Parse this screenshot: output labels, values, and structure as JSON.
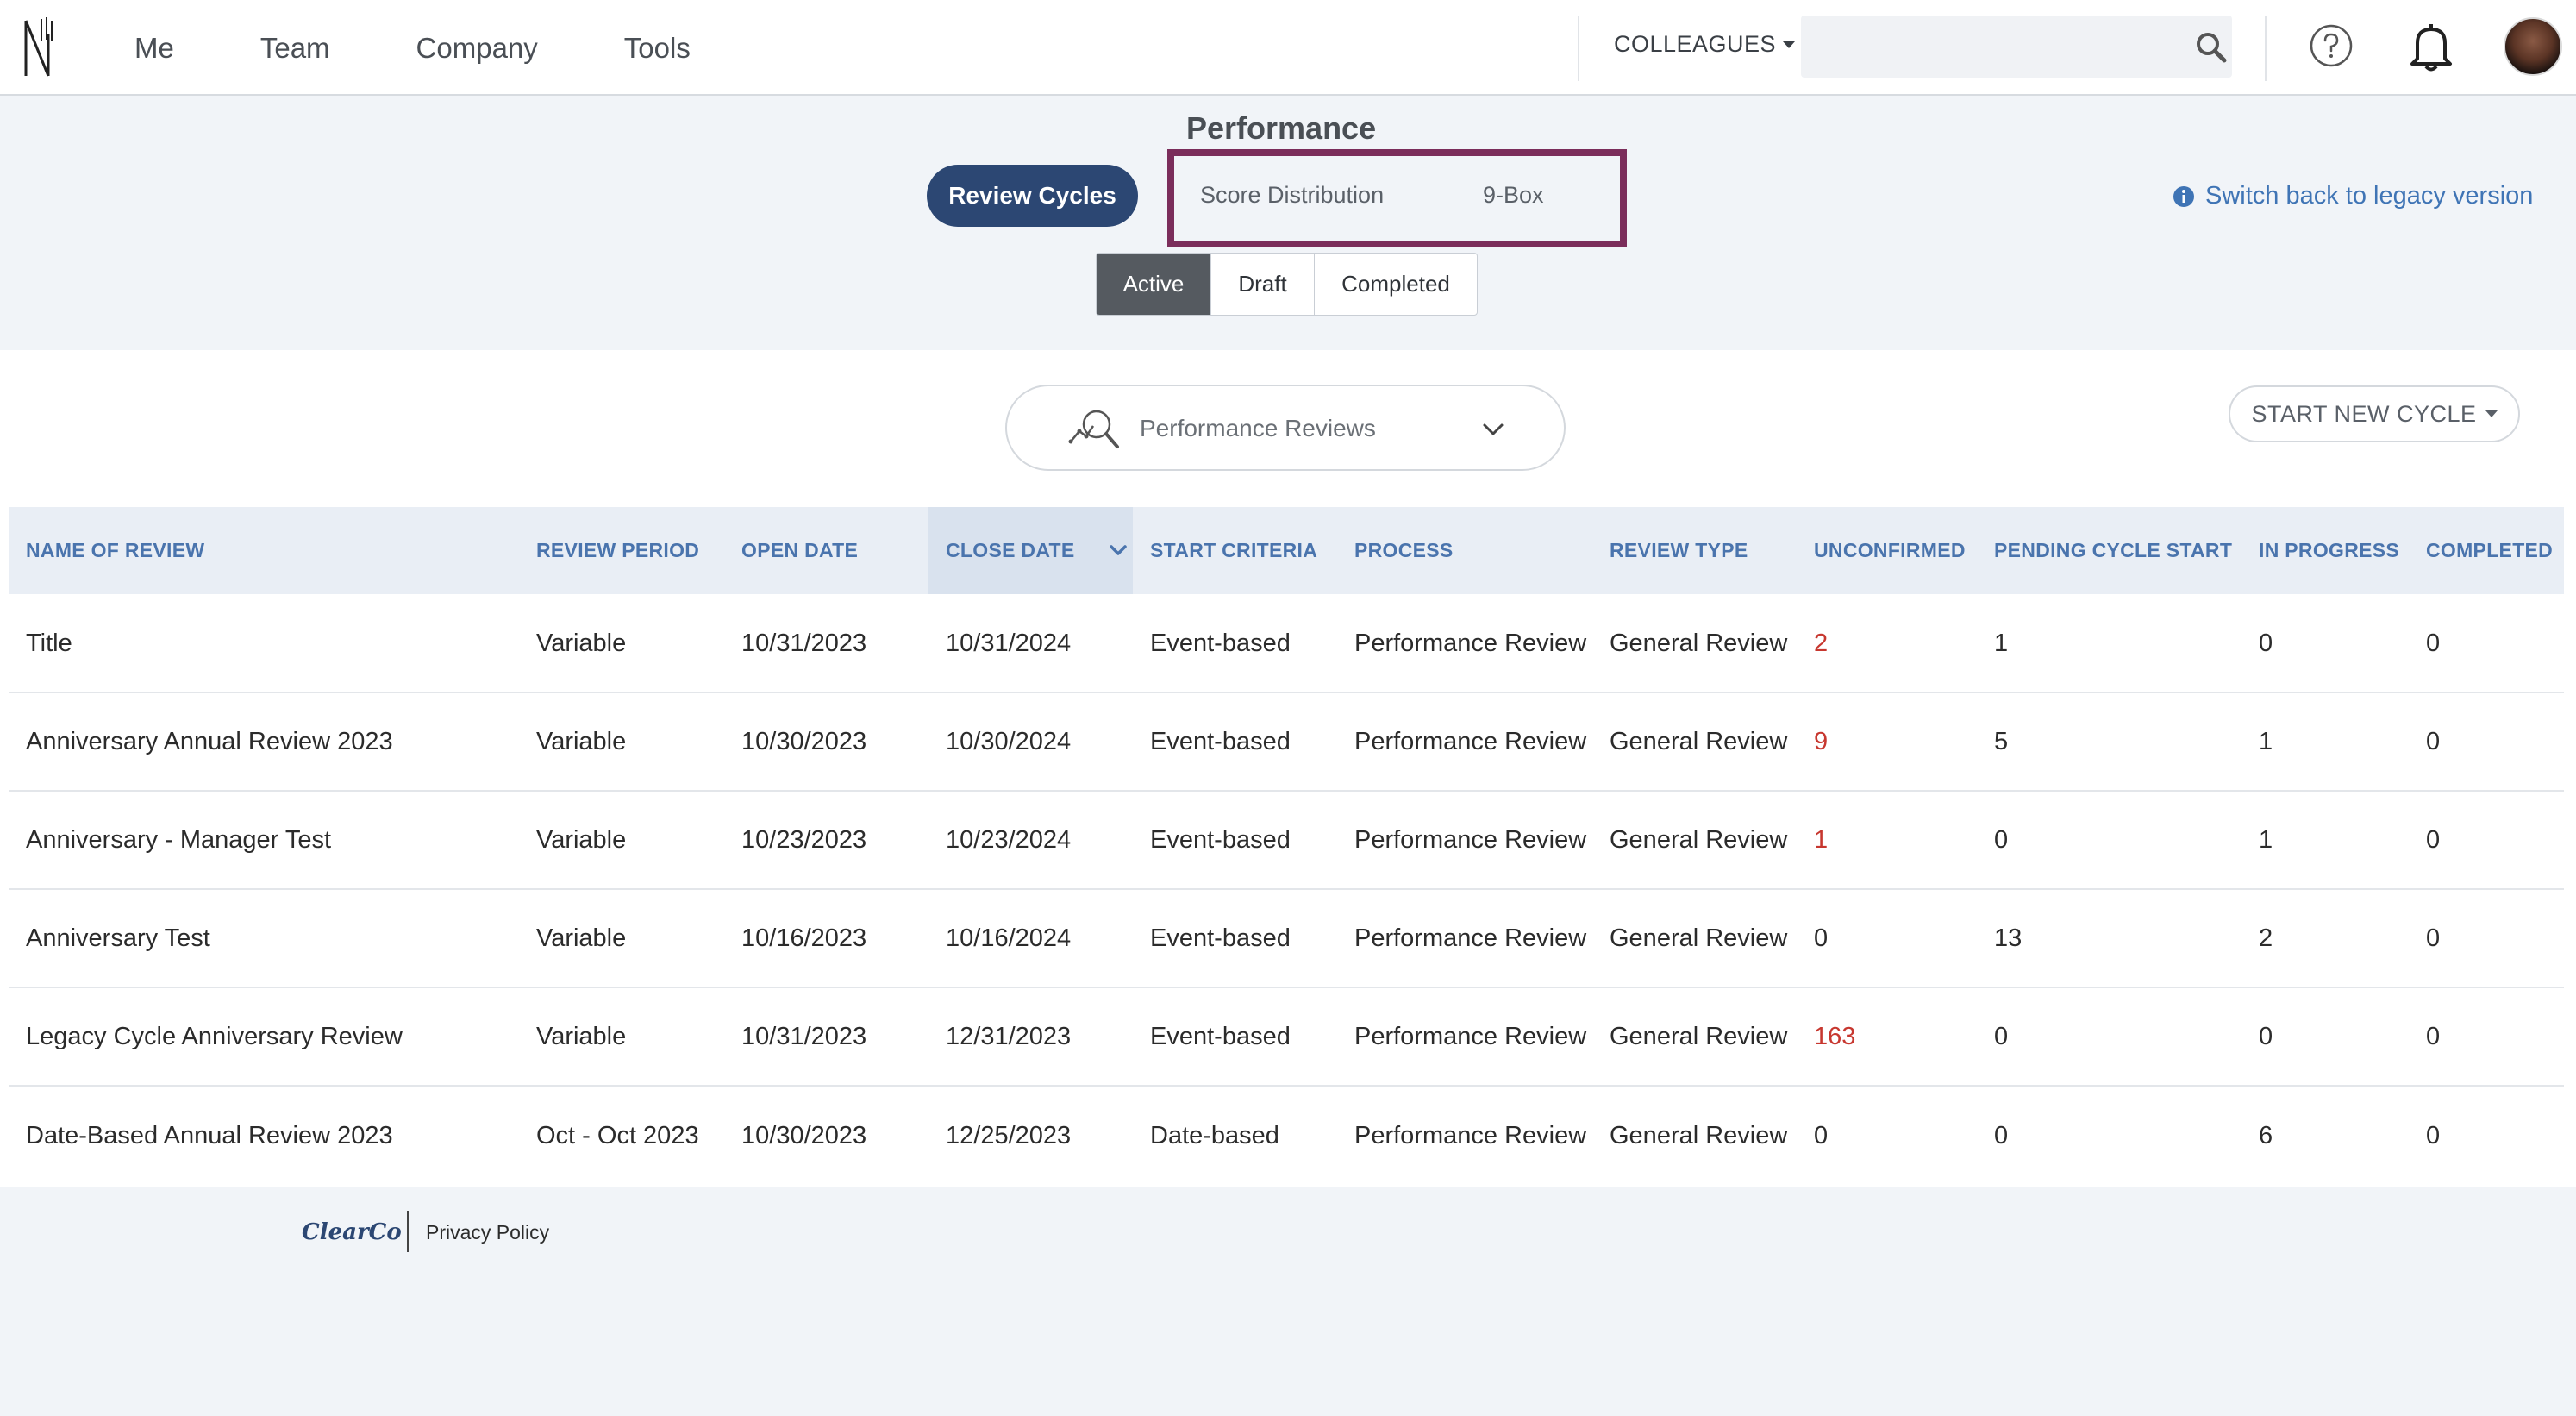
{
  "nav": {
    "links": [
      "Me",
      "Team",
      "Company",
      "Tools"
    ],
    "colleagues_label": "COLLEAGUES",
    "search_placeholder": "",
    "icons": [
      "logo-icon",
      "search-icon",
      "help-icon",
      "bell-icon",
      "avatar"
    ]
  },
  "header": {
    "title": "Performance",
    "review_cycles_button": "Review Cycles",
    "tabs": [
      "Score Distribution",
      "9-Box"
    ],
    "legacy_link": "Switch back to legacy version",
    "status_tabs": [
      "Active",
      "Draft",
      "Completed"
    ],
    "active_status": "Active"
  },
  "toolbar": {
    "review_type_dropdown": "Performance Reviews",
    "start_new_cycle": "START NEW CYCLE"
  },
  "table": {
    "columns": [
      "NAME OF REVIEW",
      "REVIEW PERIOD",
      "OPEN DATE",
      "CLOSE DATE",
      "START CRITERIA",
      "PROCESS",
      "REVIEW TYPE",
      "UNCONFIRMED",
      "PENDING CYCLE START",
      "IN PROGRESS",
      "COMPLETED"
    ],
    "sorted_column": "CLOSE DATE",
    "rows": [
      {
        "name": "Title",
        "period": "Variable",
        "open": "10/31/2023",
        "close": "10/31/2024",
        "criteria": "Event-based",
        "process": "Performance Review",
        "type": "General Review",
        "unconfirmed": "2",
        "pending": "1",
        "in_progress": "0",
        "completed": "0"
      },
      {
        "name": "Anniversary Annual Review 2023",
        "period": "Variable",
        "open": "10/30/2023",
        "close": "10/30/2024",
        "criteria": "Event-based",
        "process": "Performance Review",
        "type": "General Review",
        "unconfirmed": "9",
        "pending": "5",
        "in_progress": "1",
        "completed": "0"
      },
      {
        "name": "Anniversary - Manager Test",
        "period": "Variable",
        "open": "10/23/2023",
        "close": "10/23/2024",
        "criteria": "Event-based",
        "process": "Performance Review",
        "type": "General Review",
        "unconfirmed": "1",
        "pending": "0",
        "in_progress": "1",
        "completed": "0"
      },
      {
        "name": "Anniversary Test",
        "period": "Variable",
        "open": "10/16/2023",
        "close": "10/16/2024",
        "criteria": "Event-based",
        "process": "Performance Review",
        "type": "General Review",
        "unconfirmed": "0",
        "pending": "13",
        "in_progress": "2",
        "completed": "0"
      },
      {
        "name": "Legacy Cycle Anniversary Review",
        "period": "Variable",
        "open": "10/31/2023",
        "close": "12/31/2023",
        "criteria": "Event-based",
        "process": "Performance Review",
        "type": "General Review",
        "unconfirmed": "163",
        "pending": "0",
        "in_progress": "0",
        "completed": "0"
      },
      {
        "name": "Date-Based Annual Review 2023",
        "period": "Oct - Oct 2023",
        "open": "10/30/2023",
        "close": "12/25/2023",
        "criteria": "Date-based",
        "process": "Performance Review",
        "type": "General Review",
        "unconfirmed": "0",
        "pending": "0",
        "in_progress": "6",
        "completed": "0"
      }
    ]
  },
  "footer": {
    "logo_text": "ClearCo",
    "privacy": "Privacy Policy"
  },
  "colors": {
    "primary": "#2c4773",
    "highlight_border": "#7b2d5b",
    "link": "#3f74b5",
    "header_text": "#4a74ad",
    "alert_red": "#c7372f"
  }
}
